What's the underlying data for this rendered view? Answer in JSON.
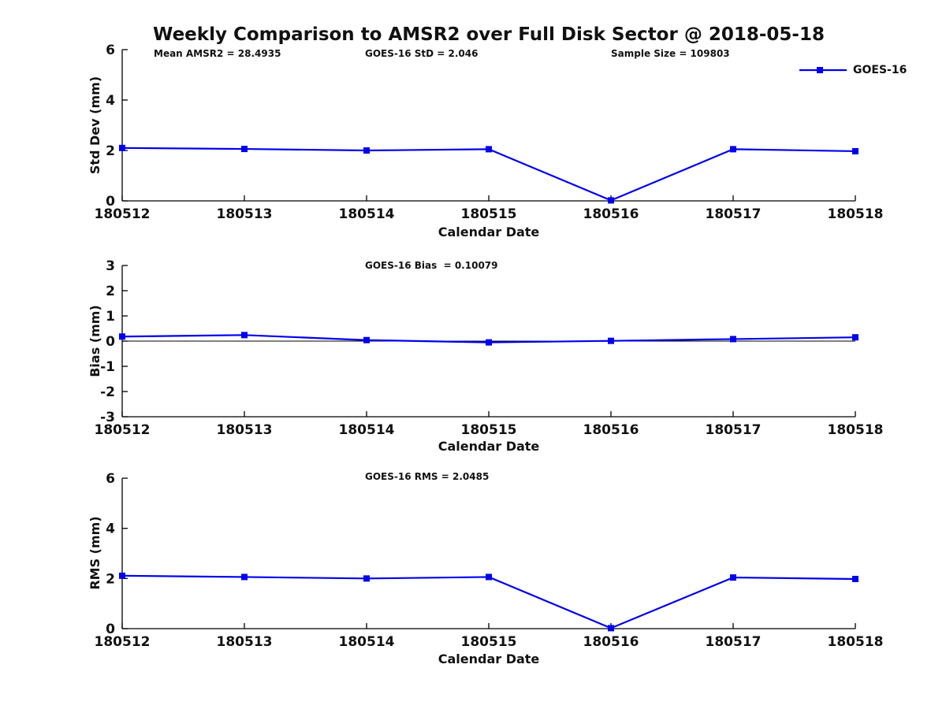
{
  "title": "Weekly Comparison to AMSR2 over Full Disk Sector @ 2018-05-18",
  "legend": {
    "label": "GOES-16"
  },
  "colors": {
    "line": "#0000EE",
    "marker": "#0000EE",
    "axis": "#000000",
    "text": "#111111"
  },
  "chart_data": [
    {
      "type": "line",
      "panel": "std-dev",
      "annotations": [
        {
          "text": "Mean AMSR2 = 28.4935"
        },
        {
          "text": "GOES-16 StD = 2.046"
        },
        {
          "text": "Sample Size = 109803"
        }
      ],
      "categories": [
        "180512",
        "180513",
        "180514",
        "180515",
        "180516",
        "180517",
        "180518"
      ],
      "series": [
        {
          "name": "GOES-16",
          "values": [
            2.1,
            2.06,
            2.0,
            2.05,
            0.02,
            2.05,
            1.97
          ]
        }
      ],
      "xlabel": "Calendar Date",
      "ylabel": "Std Dev (mm)",
      "ylim": [
        0,
        6
      ],
      "yticks": [
        0,
        2,
        4,
        6
      ],
      "grid": false,
      "zero_line": false,
      "legend_position": "top-right"
    },
    {
      "type": "line",
      "panel": "bias",
      "annotations": [
        {
          "text": "GOES-16 Bias  = 0.10079"
        }
      ],
      "categories": [
        "180512",
        "180513",
        "180514",
        "180515",
        "180516",
        "180517",
        "180518"
      ],
      "series": [
        {
          "name": "GOES-16",
          "values": [
            0.18,
            0.24,
            0.04,
            -0.05,
            0.01,
            0.08,
            0.15
          ]
        }
      ],
      "xlabel": "Calendar Date",
      "ylabel": "Bias (mm)",
      "ylim": [
        -3,
        3
      ],
      "yticks": [
        -3,
        -2,
        -1,
        0,
        1,
        2,
        3
      ],
      "grid": false,
      "zero_line": true,
      "legend_position": "none"
    },
    {
      "type": "line",
      "panel": "rms",
      "annotations": [
        {
          "text": "GOES-16 RMS = 2.0485"
        }
      ],
      "categories": [
        "180512",
        "180513",
        "180514",
        "180515",
        "180516",
        "180517",
        "180518"
      ],
      "series": [
        {
          "name": "GOES-16",
          "values": [
            2.11,
            2.06,
            2.0,
            2.06,
            0.02,
            2.04,
            1.98
          ]
        }
      ],
      "xlabel": "Calendar Date",
      "ylabel": "RMS (mm)",
      "ylim": [
        0,
        6
      ],
      "yticks": [
        0,
        2,
        4,
        6
      ],
      "grid": false,
      "zero_line": false,
      "legend_position": "none"
    }
  ]
}
